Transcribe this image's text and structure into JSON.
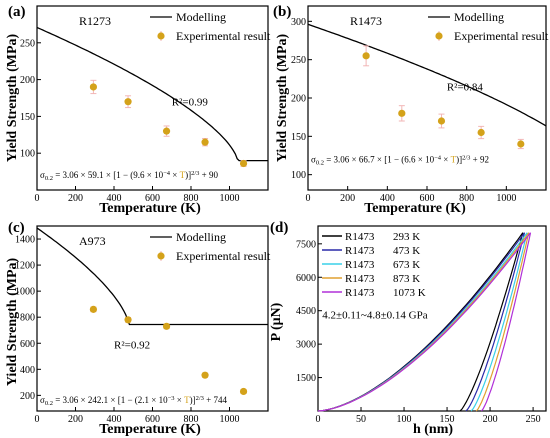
{
  "charts": [
    {
      "type": "scatter",
      "panel_label": "(a)",
      "inner_title": "R1273",
      "xlabel": "Temperature (K)",
      "ylabel": "Yield Strength (MPa)",
      "xlim": [
        0,
        1200
      ],
      "ylim": [
        50,
        300
      ],
      "xticks": [
        "0",
        "200",
        "400",
        "600",
        "800",
        "1000"
      ],
      "yticks": [
        "100",
        "150",
        "200",
        "250"
      ],
      "legend_position": "top-right",
      "legend": {
        "model_label": "Modelling",
        "exp_label": "Experimental result"
      },
      "annotation": {
        "label": "R²=0.99",
        "at": [
          700,
          165
        ]
      },
      "equation": {
        "lead": "σ",
        "sub": "0.2",
        "pre": " = 3.06 × 59.1 × [1 − (9.6 × 10",
        "exp": "−4",
        "mid": " × ",
        "T": "T",
        "post": ")]",
        "pow": "2/3",
        "tail": " + 90",
        "at": [
          0,
          66
        ]
      },
      "model": {
        "sf": 3.06,
        "a": 59.1,
        "b": 0.00096,
        "c": 90
      },
      "points": [
        {
          "x": 293,
          "y": 190,
          "err": 9
        },
        {
          "x": 473,
          "y": 170,
          "err": 8
        },
        {
          "x": 673,
          "y": 130,
          "err": 7
        },
        {
          "x": 873,
          "y": 115,
          "err": 5
        },
        {
          "x": 1073,
          "y": 86,
          "err": 4
        }
      ]
    },
    {
      "type": "scatter",
      "panel_label": "(b)",
      "inner_title": "R1473",
      "xlabel": "Temperature (K)",
      "ylabel": "Yield Strength (MPa)",
      "xlim": [
        0,
        1200
      ],
      "ylim": [
        80,
        320
      ],
      "xticks": [
        "0",
        "200",
        "400",
        "600",
        "800",
        "1000"
      ],
      "yticks": [
        "100",
        "150",
        "200",
        "250",
        "300"
      ],
      "legend_position": "top-right",
      "legend": {
        "model_label": "Modelling",
        "exp_label": "Experimental result"
      },
      "annotation": {
        "label": "R²=0.84",
        "at": [
          700,
          210
        ]
      },
      "equation": {
        "lead": "σ",
        "sub": "0.2",
        "pre": " = 3.06 × 66.7 × [1 − (6.6 × 10",
        "exp": "−4",
        "mid": " × ",
        "T": "T",
        "post": ")]",
        "pow": "2/3",
        "tail": " + 92",
        "at": [
          0,
          116
        ]
      },
      "model": {
        "sf": 3.06,
        "a": 66.7,
        "b": 0.00066,
        "c": 92
      },
      "points": [
        {
          "x": 293,
          "y": 255,
          "err": 13
        },
        {
          "x": 473,
          "y": 180,
          "err": 10
        },
        {
          "x": 673,
          "y": 170,
          "err": 9
        },
        {
          "x": 873,
          "y": 155,
          "err": 8
        },
        {
          "x": 1073,
          "y": 140,
          "err": 6
        }
      ]
    },
    {
      "type": "scatter",
      "panel_label": "(c)",
      "inner_title": "A973",
      "xlabel": "Temperature (K)",
      "ylabel": "Yield Strength (MPa)",
      "xlim": [
        0,
        1200
      ],
      "ylim": [
        80,
        1500
      ],
      "xticks": [
        "0",
        "200",
        "400",
        "600",
        "800",
        "1000"
      ],
      "yticks": [
        "200",
        "400",
        "600",
        "800",
        "1000",
        "1200",
        "1400"
      ],
      "legend_position": "top-right",
      "legend": {
        "model_label": "Modelling",
        "exp_label": "Experimental result"
      },
      "annotation": {
        "label": "R²=0.92",
        "at": [
          400,
          560
        ]
      },
      "equation": {
        "lead": "σ",
        "sub": "0.2",
        "pre": " = 3.06 × 242.1 × [1 − (2.1 × 10",
        "exp": "−3",
        "mid": " × ",
        "T": "T",
        "post": ")]",
        "pow": "2/3",
        "tail": " + 744",
        "at": [
          0,
          140
        ]
      },
      "model": {
        "sf": 3.06,
        "a": 242.1,
        "b": 0.0021,
        "c": 744
      },
      "points": [
        {
          "x": 293,
          "y": 860,
          "err": 18
        },
        {
          "x": 473,
          "y": 780,
          "err": 18
        },
        {
          "x": 673,
          "y": 730,
          "err": 18
        },
        {
          "x": 873,
          "y": 355,
          "err": 15
        },
        {
          "x": 1073,
          "y": 230,
          "err": 15
        }
      ]
    },
    {
      "type": "line",
      "panel_label": "(d)",
      "xlabel": "h (nm)",
      "ylabel": "P (μN)",
      "xlim": [
        0,
        265
      ],
      "ylim": [
        0,
        8300
      ],
      "xticks": [
        "0",
        "50",
        "100",
        "150",
        "200",
        "250"
      ],
      "yticks": [
        "1500",
        "3000",
        "4500",
        "6000",
        "7500"
      ],
      "legend_position": "top-left",
      "annotation": {
        "label": "4.2±0.11~4.8±0.14 GPa",
        "at": [
          5,
          4150
        ]
      },
      "series": [
        {
          "name": "R1473",
          "temp": "293 K",
          "color": "#000000",
          "hmax": 238,
          "hf": 165
        },
        {
          "name": "R1473",
          "temp": "473 K",
          "color": "#2a2aa8",
          "hmax": 240,
          "hf": 172
        },
        {
          "name": "R1473",
          "temp": "673 K",
          "color": "#3ad0e8",
          "hmax": 243,
          "hf": 178
        },
        {
          "name": "R1473",
          "temp": "873 K",
          "color": "#e0a030",
          "hmax": 245,
          "hf": 184
        },
        {
          "name": "R1473",
          "temp": "1073 K",
          "color": "#b030d8",
          "hmax": 247,
          "hf": 190
        }
      ],
      "pmax": 8000
    }
  ],
  "colors": {
    "point": "#d4a21a",
    "errorbar": "#f2b6b6",
    "line": "#000000",
    "highlight": "#d4a21a"
  }
}
